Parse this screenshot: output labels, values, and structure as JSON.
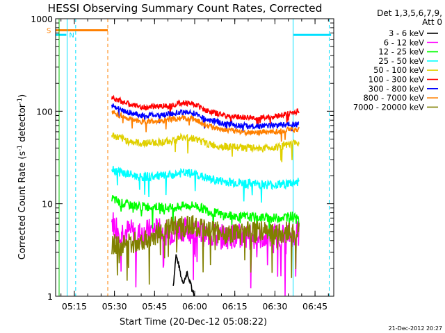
{
  "chart_data": {
    "type": "line",
    "title": "HESSI Observing Summary Count Rates, Corrected",
    "xlabel": "Start Time (20-Dec-12 05:08:22)",
    "ylabel_main": "Corrected Count Rate (s",
    "ylabel_exp1": "-1",
    "ylabel_mid": " detector",
    "ylabel_exp2": "-1",
    "ylabel_end": ")",
    "yscale": "log",
    "ylim": [
      1,
      1000
    ],
    "xlim_min": [
      308,
      412
    ],
    "x_ticks": [
      {
        "label": "05:15",
        "value": 315
      },
      {
        "label": "05:30",
        "value": 330
      },
      {
        "label": "05:45",
        "value": 345
      },
      {
        "label": "06:00",
        "value": 360
      },
      {
        "label": "06:15",
        "value": 375
      },
      {
        "label": "06:30",
        "value": 390
      },
      {
        "label": "06:45",
        "value": 405
      }
    ],
    "y_ticks": [
      {
        "label": "1",
        "value": 1
      },
      {
        "label": "10",
        "value": 10
      },
      {
        "label": "100",
        "value": 100
      },
      {
        "label": "1000",
        "value": 1000
      }
    ],
    "legend": {
      "header1": "Det 1,3,5,6,7,9,",
      "header2": "Att 0",
      "placement": "right"
    },
    "flags": [
      {
        "label": "S",
        "color": "#ff8000",
        "value": 750,
        "start": 308,
        "end": 327.5
      },
      {
        "label": "N",
        "color": "#00e0ff",
        "value": 670,
        "start": 308,
        "end": 312
      },
      {
        "label": "",
        "color": "#00e0ff",
        "value": 670,
        "start": 397,
        "end": 411
      }
    ],
    "vlines": [
      {
        "value": 309.3,
        "color": "#00c000",
        "style": "solid"
      },
      {
        "value": 312.3,
        "color": "#00e0ff",
        "style": "solid"
      },
      {
        "value": 315.5,
        "color": "#00e0ff",
        "style": "dashed"
      },
      {
        "value": 327.5,
        "color": "#ff8000",
        "style": "dashed"
      },
      {
        "value": 396.8,
        "color": "#00e0ff",
        "style": "solid"
      },
      {
        "value": 410.3,
        "color": "#00e0ff",
        "style": "dashed"
      }
    ],
    "series": [
      {
        "name": "3 - 6 keV",
        "color": "#000000",
        "x": [
          352,
          353,
          354,
          355,
          356,
          357,
          358,
          359,
          360
        ],
        "y": [
          1.3,
          2.8,
          2.2,
          1.6,
          1.4,
          1.8,
          1.5,
          1.2,
          1.0
        ]
      },
      {
        "name": "6 - 12 keV",
        "color": "#ff00ff",
        "x": [
          329,
          332,
          336,
          340,
          345,
          350,
          355,
          360,
          365,
          370,
          375,
          380,
          385,
          390,
          395,
          399
        ],
        "y": [
          6.5,
          5.2,
          5.0,
          4.7,
          5.3,
          4.8,
          5.4,
          4.9,
          4.6,
          4.4,
          4.5,
          4.3,
          4.4,
          4.5,
          4.6,
          4.8
        ]
      },
      {
        "name": "12 - 25 keV",
        "color": "#00ff00",
        "x": [
          329,
          332,
          336,
          340,
          345,
          350,
          355,
          360,
          365,
          370,
          375,
          380,
          385,
          390,
          395,
          399
        ],
        "y": [
          11.5,
          10.2,
          9.7,
          9.3,
          9.4,
          9.0,
          9.4,
          9.6,
          8.4,
          7.6,
          7.3,
          7.2,
          7.1,
          7.0,
          7.3,
          7.6
        ]
      },
      {
        "name": "25 - 50 keV",
        "color": "#00ffff",
        "x": [
          329,
          332,
          336,
          340,
          345,
          350,
          355,
          360,
          365,
          370,
          375,
          380,
          385,
          390,
          395,
          399
        ],
        "y": [
          24,
          22,
          20.5,
          19.5,
          19.8,
          20,
          21.5,
          21,
          18.5,
          17.5,
          17,
          16.5,
          16.2,
          16,
          16.5,
          17.5
        ]
      },
      {
        "name": "50 - 100 keV",
        "color": "#e0d000",
        "x": [
          329,
          332,
          336,
          340,
          345,
          350,
          355,
          360,
          365,
          370,
          375,
          380,
          385,
          390,
          395,
          399
        ],
        "y": [
          55,
          51,
          47,
          45,
          46,
          47,
          52,
          51,
          44,
          42,
          41,
          40,
          40,
          41,
          43,
          46
        ]
      },
      {
        "name": "100 - 300 keV",
        "color": "#ff0000",
        "x": [
          329,
          332,
          336,
          340,
          345,
          350,
          355,
          360,
          365,
          370,
          375,
          380,
          385,
          390,
          395,
          399
        ],
        "y": [
          143,
          130,
          118,
          110,
          112,
          115,
          124,
          119,
          100,
          92,
          87,
          85,
          85,
          88,
          94,
          100
        ]
      },
      {
        "name": "300 - 800 keV",
        "color": "#0000ff",
        "x": [
          329,
          332,
          336,
          340,
          345,
          350,
          355,
          360,
          365,
          370,
          375,
          380,
          385,
          390,
          395,
          399
        ],
        "y": [
          118,
          104,
          96,
          90,
          91,
          93,
          98,
          95,
          81,
          75,
          71,
          69,
          69,
          70,
          72,
          73
        ]
      },
      {
        "name": "800 - 7000 keV",
        "color": "#ff8000",
        "x": [
          329,
          332,
          336,
          340,
          345,
          350,
          355,
          360,
          365,
          370,
          375,
          380,
          385,
          390,
          395,
          399
        ],
        "y": [
          98,
          90,
          82,
          77,
          78,
          80,
          84,
          82,
          70,
          64,
          61,
          59,
          59,
          60,
          63,
          64
        ]
      },
      {
        "name": "7000 - 20000 keV",
        "color": "#808000",
        "x": [
          329,
          332,
          336,
          340,
          345,
          350,
          355,
          360,
          365,
          370,
          375,
          380,
          385,
          390,
          395,
          399
        ],
        "y": [
          3.6,
          3.5,
          3.7,
          4.0,
          4.6,
          5.4,
          5.8,
          5.7,
          5.2,
          4.8,
          4.6,
          4.9,
          5.0,
          4.8,
          4.9,
          4.9
        ]
      }
    ]
  },
  "footer": {
    "timestamp": "21-Dec-2012 20:27"
  }
}
